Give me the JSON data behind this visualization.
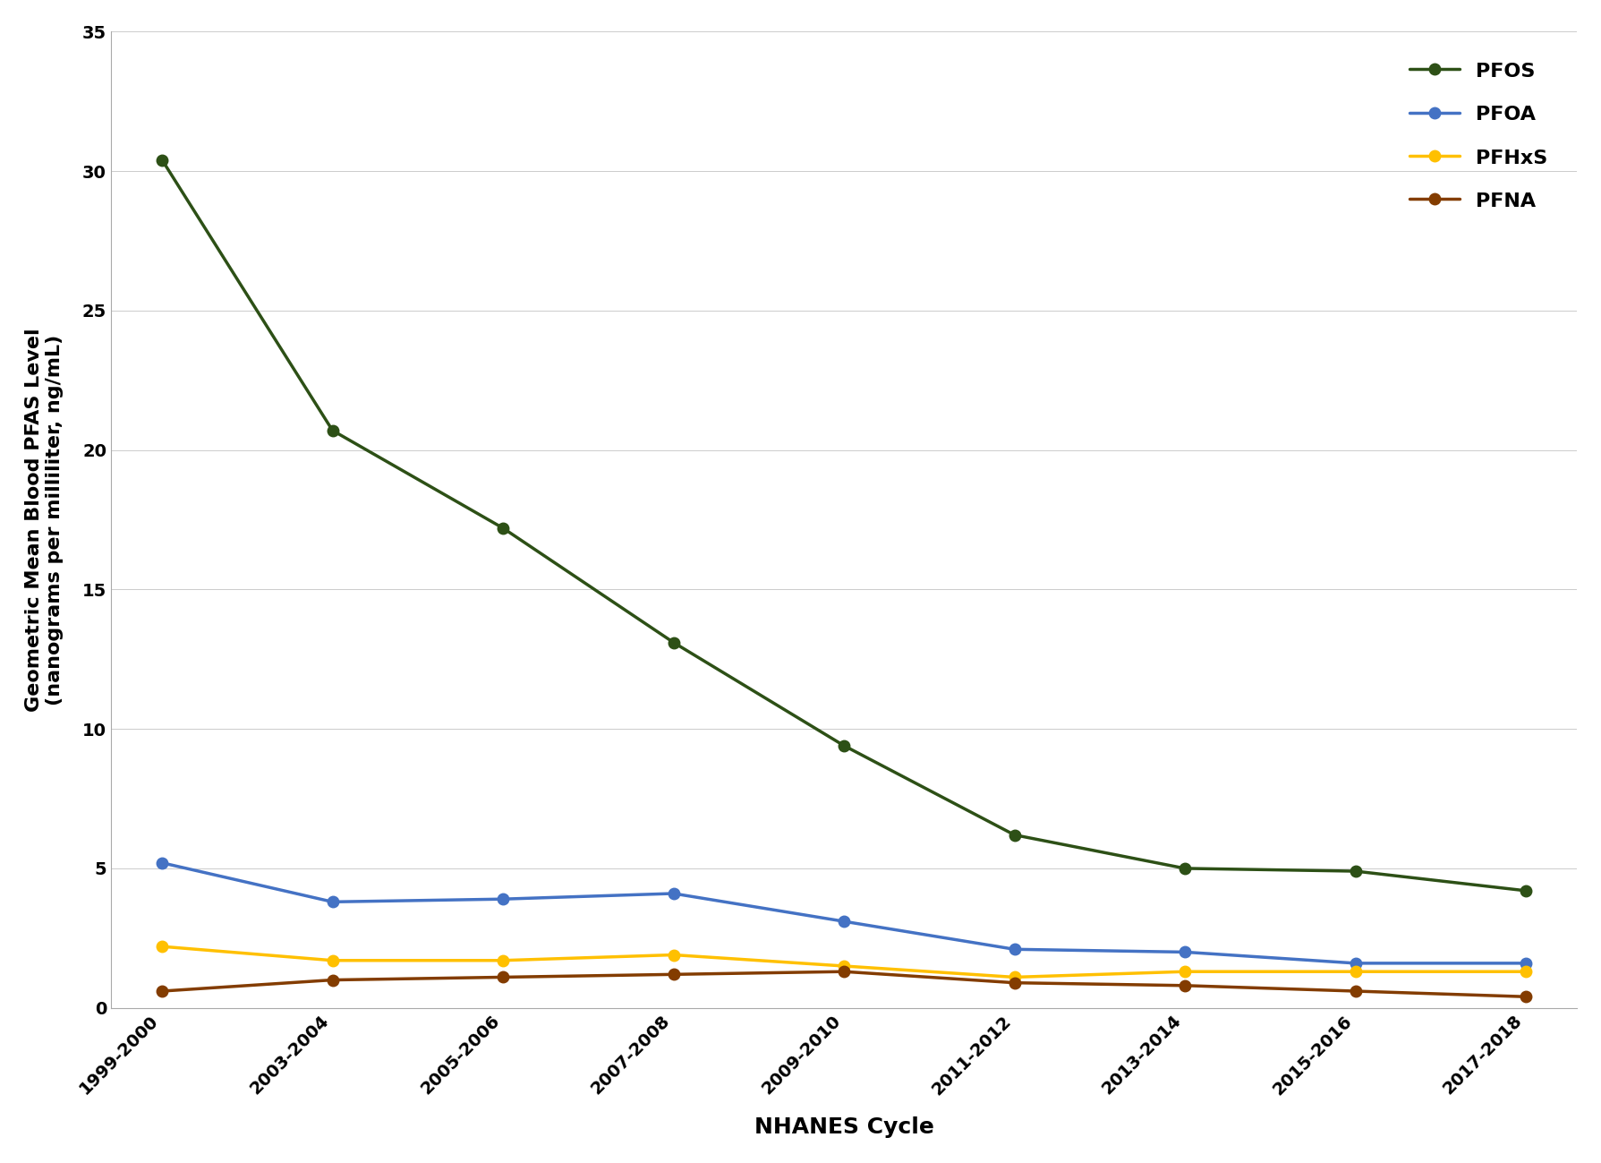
{
  "title": "",
  "xlabel": "NHANES Cycle",
  "ylabel": "Geometric Mean Blood PFAS Level\n(nanograms per milliliter, ng/mL)",
  "x_labels": [
    "1999-2000",
    "2003-2004",
    "2005-2006",
    "2007-2008",
    "2009-2010",
    "2011-2012",
    "2013-2014",
    "2015-2016",
    "2017-2018"
  ],
  "series": [
    {
      "name": "PFOS",
      "color": "#2d5016",
      "values": [
        30.4,
        20.7,
        17.2,
        13.1,
        9.4,
        6.2,
        5.0,
        4.9,
        4.2
      ]
    },
    {
      "name": "PFOA",
      "color": "#4472c4",
      "values": [
        5.2,
        3.8,
        3.9,
        4.1,
        3.1,
        2.1,
        2.0,
        1.6,
        1.6
      ]
    },
    {
      "name": "PFHxS",
      "color": "#ffc000",
      "values": [
        2.2,
        1.7,
        1.7,
        1.9,
        1.5,
        1.1,
        1.3,
        1.3,
        1.3
      ]
    },
    {
      "name": "PFNA",
      "color": "#833c00",
      "values": [
        0.6,
        1.0,
        1.1,
        1.2,
        1.3,
        0.9,
        0.8,
        0.6,
        0.4
      ]
    }
  ],
  "ylim": [
    0,
    35
  ],
  "yticks": [
    0,
    5,
    10,
    15,
    20,
    25,
    30,
    35
  ],
  "marker": "o",
  "linewidth": 2.5,
  "markersize": 9,
  "xlabel_fontsize": 18,
  "ylabel_fontsize": 16,
  "tick_fontsize": 14,
  "legend_fontsize": 16
}
